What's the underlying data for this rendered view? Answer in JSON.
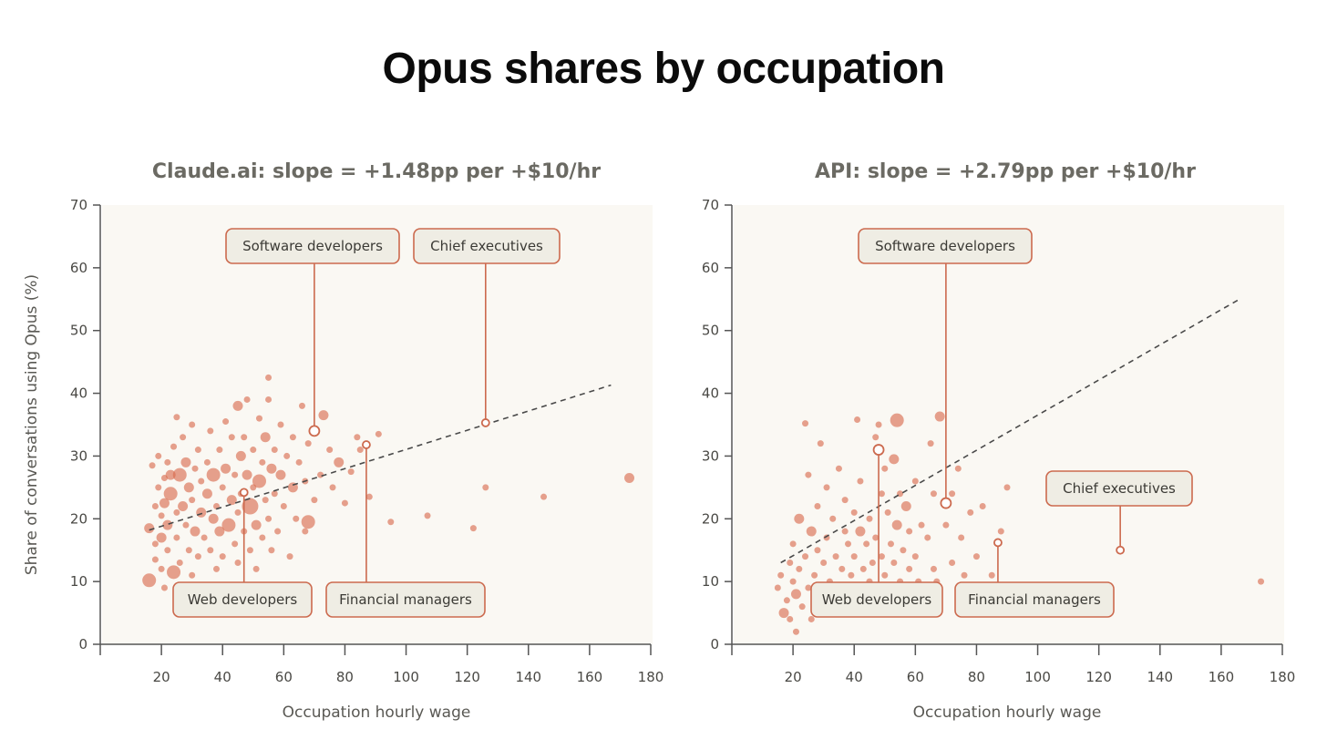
{
  "title": "Opus shares by occupation",
  "colors": {
    "point": "#d9694a",
    "callout_stroke": "#cc6a4e",
    "callout_fill": "#efede4",
    "panel_bg": "#faf8f3",
    "axis": "#555555",
    "trend": "#4a4a4a"
  },
  "chart_data": [
    {
      "type": "scatter",
      "title": "Claude.ai: slope = +1.48pp per +$10/hr",
      "xlabel": "Occupation hourly wage",
      "ylabel": "Share of conversations using Opus (%)",
      "xlim": [
        0,
        180
      ],
      "ylim": [
        0,
        70
      ],
      "xticks": [
        20,
        40,
        60,
        80,
        100,
        120,
        140,
        160,
        180
      ],
      "yticks": [
        0,
        10,
        20,
        30,
        40,
        50,
        60,
        70
      ],
      "grid": false,
      "trendline": {
        "style": "dashed",
        "x": [
          16,
          167
        ],
        "y": [
          18.2,
          41.3
        ]
      },
      "points": [
        [
          16,
          10.2,
          3
        ],
        [
          16,
          18.5,
          2
        ],
        [
          17,
          28.5,
          1
        ],
        [
          18,
          13.5,
          1
        ],
        [
          18,
          22,
          1
        ],
        [
          18,
          16,
          1
        ],
        [
          19,
          30,
          1
        ],
        [
          19,
          25,
          1
        ],
        [
          20,
          12,
          1
        ],
        [
          20,
          17,
          2
        ],
        [
          20,
          20.5,
          1
        ],
        [
          21,
          26.5,
          1
        ],
        [
          21,
          22.5,
          2
        ],
        [
          21,
          9,
          1
        ],
        [
          22,
          15,
          1
        ],
        [
          22,
          19,
          2
        ],
        [
          22,
          29,
          1
        ],
        [
          23,
          27,
          2
        ],
        [
          23,
          24,
          3
        ],
        [
          24,
          11.5,
          3
        ],
        [
          24,
          31.5,
          1
        ],
        [
          25,
          21,
          1
        ],
        [
          25,
          17,
          1
        ],
        [
          25,
          36.2,
          1
        ],
        [
          26,
          27,
          3
        ],
        [
          26,
          13,
          1
        ],
        [
          27,
          22,
          2
        ],
        [
          27,
          33,
          1
        ],
        [
          28,
          19,
          1
        ],
        [
          28,
          29,
          2
        ],
        [
          29,
          15,
          1
        ],
        [
          29,
          25,
          2
        ],
        [
          30,
          35,
          1
        ],
        [
          30,
          11,
          1
        ],
        [
          30,
          23,
          1
        ],
        [
          31,
          28,
          1
        ],
        [
          31,
          18,
          2
        ],
        [
          32,
          14,
          1
        ],
        [
          32,
          31,
          1
        ],
        [
          33,
          21,
          2
        ],
        [
          33,
          26,
          1
        ],
        [
          34,
          17,
          1
        ],
        [
          34,
          9,
          1
        ],
        [
          35,
          24,
          2
        ],
        [
          35,
          29,
          1
        ],
        [
          36,
          15,
          1
        ],
        [
          36,
          34,
          1
        ],
        [
          37,
          20,
          2
        ],
        [
          37,
          27,
          3
        ],
        [
          38,
          12,
          1
        ],
        [
          38,
          22,
          1
        ],
        [
          39,
          31,
          1
        ],
        [
          39,
          18,
          2
        ],
        [
          40,
          25,
          1
        ],
        [
          40,
          14,
          1
        ],
        [
          41,
          35.5,
          1
        ],
        [
          41,
          28,
          2
        ],
        [
          42,
          19,
          3
        ],
        [
          42,
          9,
          1
        ],
        [
          43,
          23,
          2
        ],
        [
          43,
          33,
          1
        ],
        [
          44,
          16,
          1
        ],
        [
          44,
          27,
          1
        ],
        [
          45,
          38,
          2
        ],
        [
          45,
          13,
          1
        ],
        [
          45,
          21,
          1
        ],
        [
          46,
          30,
          2
        ],
        [
          46,
          24,
          1
        ],
        [
          47,
          18,
          1
        ],
        [
          47,
          33,
          1
        ],
        [
          48,
          39,
          1
        ],
        [
          48,
          27,
          2
        ],
        [
          49,
          15,
          1
        ],
        [
          49,
          22,
          4
        ],
        [
          50,
          31,
          1
        ],
        [
          50,
          25,
          1
        ],
        [
          51,
          19,
          2
        ],
        [
          51,
          12,
          1
        ],
        [
          52,
          36,
          1
        ],
        [
          52,
          26,
          3
        ],
        [
          53,
          29,
          1
        ],
        [
          53,
          17,
          1
        ],
        [
          54,
          23,
          1
        ],
        [
          54,
          33,
          2
        ],
        [
          55,
          39,
          1
        ],
        [
          55,
          20,
          1
        ],
        [
          55,
          42.5,
          1
        ],
        [
          56,
          28,
          2
        ],
        [
          56,
          15,
          1
        ],
        [
          57,
          31,
          1
        ],
        [
          57,
          24,
          1
        ],
        [
          58,
          18,
          1
        ],
        [
          59,
          35,
          1
        ],
        [
          59,
          27,
          2
        ],
        [
          60,
          22,
          1
        ],
        [
          61,
          30,
          1
        ],
        [
          62,
          14,
          1
        ],
        [
          63,
          33,
          1
        ],
        [
          63,
          25,
          2
        ],
        [
          64,
          20,
          1
        ],
        [
          65,
          29,
          1
        ],
        [
          66,
          38,
          1
        ],
        [
          67,
          18,
          1
        ],
        [
          67,
          26,
          1
        ],
        [
          68,
          32,
          1
        ],
        [
          68,
          19.5,
          3
        ],
        [
          70,
          23,
          1
        ],
        [
          72,
          27,
          1
        ],
        [
          73,
          36.5,
          2
        ],
        [
          75,
          31,
          1
        ],
        [
          76,
          25,
          1
        ],
        [
          78,
          29,
          2
        ],
        [
          80,
          22.5,
          1
        ],
        [
          82,
          27.5,
          1
        ],
        [
          84,
          33,
          1
        ],
        [
          85,
          31,
          1
        ],
        [
          88,
          23.5,
          1
        ],
        [
          91,
          33.5,
          1
        ],
        [
          95,
          19.5,
          1
        ],
        [
          107,
          20.5,
          1
        ],
        [
          122,
          18.5,
          1
        ],
        [
          126,
          25,
          1
        ],
        [
          145,
          23.5,
          1
        ],
        [
          173,
          26.5,
          2
        ]
      ],
      "callouts": [
        {
          "label": "Software developers",
          "x": 70,
          "y": 34
        },
        {
          "label": "Chief executives",
          "x": 126,
          "y": 35.3
        },
        {
          "label": "Web developers",
          "x": 47,
          "y": 24.2
        },
        {
          "label": "Financial managers",
          "x": 87,
          "y": 31.8
        }
      ]
    },
    {
      "type": "scatter",
      "title": "API: slope = +2.79pp per +$10/hr",
      "xlabel": "Occupation hourly wage",
      "ylabel": "",
      "xlim": [
        0,
        180
      ],
      "ylim": [
        0,
        70
      ],
      "xticks": [
        20,
        40,
        60,
        80,
        100,
        120,
        140,
        160,
        180
      ],
      "yticks": [
        0,
        10,
        20,
        30,
        40,
        50,
        60,
        70
      ],
      "grid": false,
      "trendline": {
        "style": "dashed",
        "x": [
          16,
          166
        ],
        "y": [
          13,
          55
        ]
      },
      "points": [
        [
          15,
          9,
          1
        ],
        [
          16,
          11,
          1
        ],
        [
          17,
          5,
          2
        ],
        [
          18,
          7,
          1
        ],
        [
          19,
          13,
          1
        ],
        [
          19,
          4,
          1
        ],
        [
          20,
          16,
          1
        ],
        [
          20,
          10,
          1
        ],
        [
          21,
          2,
          1
        ],
        [
          21,
          8,
          2
        ],
        [
          22,
          20,
          2
        ],
        [
          22,
          12,
          1
        ],
        [
          23,
          6,
          1
        ],
        [
          24,
          14,
          1
        ],
        [
          24,
          35.2,
          1
        ],
        [
          25,
          9,
          1
        ],
        [
          25,
          27,
          1
        ],
        [
          26,
          18,
          2
        ],
        [
          26,
          4,
          1
        ],
        [
          27,
          11,
          1
        ],
        [
          28,
          22,
          1
        ],
        [
          28,
          15,
          1
        ],
        [
          29,
          32,
          1
        ],
        [
          29,
          8,
          1
        ],
        [
          30,
          13,
          1
        ],
        [
          31,
          25,
          1
        ],
        [
          31,
          17,
          1
        ],
        [
          32,
          10,
          1
        ],
        [
          33,
          6,
          1
        ],
        [
          33,
          20,
          1
        ],
        [
          34,
          14,
          1
        ],
        [
          35,
          28,
          1
        ],
        [
          35,
          9,
          1
        ],
        [
          36,
          12,
          1
        ],
        [
          37,
          18,
          1
        ],
        [
          37,
          23,
          1
        ],
        [
          38,
          16,
          1
        ],
        [
          38,
          7,
          1
        ],
        [
          39,
          11,
          1
        ],
        [
          40,
          21,
          1
        ],
        [
          40,
          14,
          1
        ],
        [
          41,
          35.8,
          1
        ],
        [
          41,
          9,
          1
        ],
        [
          42,
          18,
          2
        ],
        [
          42,
          26,
          1
        ],
        [
          43,
          12,
          1
        ],
        [
          44,
          16,
          1
        ],
        [
          44,
          5,
          1
        ],
        [
          45,
          20,
          1
        ],
        [
          45,
          10,
          1
        ],
        [
          46,
          13,
          1
        ],
        [
          47,
          33,
          1
        ],
        [
          47,
          17,
          1
        ],
        [
          48,
          8,
          1
        ],
        [
          48,
          35,
          1
        ],
        [
          49,
          24,
          1
        ],
        [
          49,
          14,
          1
        ],
        [
          50,
          11,
          1
        ],
        [
          50,
          28,
          1
        ],
        [
          51,
          21,
          1
        ],
        [
          52,
          6,
          1
        ],
        [
          52,
          16,
          1
        ],
        [
          53,
          29.5,
          2
        ],
        [
          53,
          13,
          1
        ],
        [
          54,
          35.7,
          3
        ],
        [
          54,
          19,
          2
        ],
        [
          55,
          10,
          1
        ],
        [
          55,
          24,
          1
        ],
        [
          56,
          15,
          1
        ],
        [
          56,
          8,
          1
        ],
        [
          57,
          22,
          2
        ],
        [
          58,
          18,
          1
        ],
        [
          58,
          12,
          1
        ],
        [
          60,
          26,
          1
        ],
        [
          60,
          14,
          1
        ],
        [
          61,
          10,
          1
        ],
        [
          62,
          19,
          1
        ],
        [
          63,
          7,
          1
        ],
        [
          64,
          17,
          1
        ],
        [
          65,
          32,
          1
        ],
        [
          66,
          12,
          1
        ],
        [
          66,
          24,
          1
        ],
        [
          67,
          10,
          1
        ],
        [
          68,
          36.3,
          2
        ],
        [
          70,
          19,
          1
        ],
        [
          72,
          13,
          1
        ],
        [
          72,
          24,
          1
        ],
        [
          74,
          28,
          1
        ],
        [
          75,
          17,
          1
        ],
        [
          76,
          11,
          1
        ],
        [
          78,
          21,
          1
        ],
        [
          80,
          14,
          1
        ],
        [
          82,
          22,
          1
        ],
        [
          85,
          11,
          1
        ],
        [
          88,
          18,
          1
        ],
        [
          90,
          25,
          1
        ],
        [
          173,
          10,
          1
        ]
      ],
      "callouts": [
        {
          "label": "Software developers",
          "x": 70,
          "y": 22.5
        },
        {
          "label": "Chief executives",
          "x": 127,
          "y": 15
        },
        {
          "label": "Web developers",
          "x": 48,
          "y": 31
        },
        {
          "label": "Financial managers",
          "x": 87,
          "y": 16.2
        }
      ]
    }
  ]
}
